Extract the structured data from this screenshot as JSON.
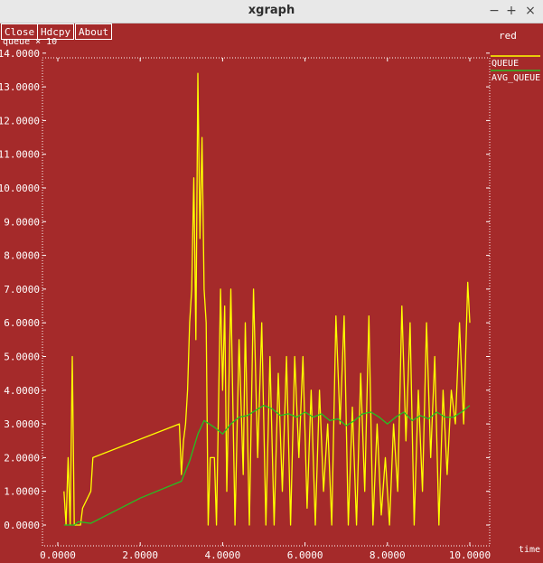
{
  "window": {
    "title": "xgraph",
    "controls": {
      "minimize": "−",
      "maximize": "+",
      "close": "×"
    }
  },
  "toolbar": {
    "close_label": "Close",
    "hdcpy_label": "Hdcpy",
    "about_label": "About"
  },
  "graph_title": "red",
  "colors": {
    "background": "#a52a2a",
    "queue": "#ffff00",
    "avg_queue": "#22c322",
    "text": "#ffffff"
  },
  "chart_data": {
    "type": "line",
    "ylabel": "queue × 10⁻",
    "xlabel": "time",
    "xlim": [
      0,
      10.5
    ],
    "ylim": [
      -0.6,
      14.0
    ],
    "y_ticks": [
      "14.0000",
      "13.0000",
      "12.0000",
      "11.0000",
      "10.0000",
      "9.0000",
      "8.0000",
      "7.0000",
      "6.0000",
      "5.0000",
      "4.0000",
      "3.0000",
      "2.0000",
      "1.0000",
      "0.0000"
    ],
    "x_ticks": [
      "0.0000",
      "2.0000",
      "4.0000",
      "6.0000",
      "8.0000",
      "10.0000"
    ],
    "grid": false,
    "legend_position": "right",
    "series": [
      {
        "name": "QUEUE",
        "color": "#ffff00",
        "points": [
          [
            0.15,
            1.0
          ],
          [
            0.2,
            0
          ],
          [
            0.25,
            2.0
          ],
          [
            0.3,
            0
          ],
          [
            0.35,
            5.0
          ],
          [
            0.4,
            0
          ],
          [
            0.45,
            0
          ],
          [
            0.55,
            0
          ],
          [
            0.6,
            0.5
          ],
          [
            0.8,
            1.0
          ],
          [
            0.85,
            2.0
          ],
          [
            2.95,
            3.0
          ],
          [
            3.0,
            1.5
          ],
          [
            3.05,
            2.5
          ],
          [
            3.1,
            3.0
          ],
          [
            3.15,
            4.0
          ],
          [
            3.2,
            6.0
          ],
          [
            3.25,
            7.0
          ],
          [
            3.3,
            10.3
          ],
          [
            3.35,
            5.5
          ],
          [
            3.4,
            13.4
          ],
          [
            3.45,
            8.5
          ],
          [
            3.5,
            11.5
          ],
          [
            3.55,
            7.0
          ],
          [
            3.6,
            6.0
          ],
          [
            3.65,
            0
          ],
          [
            3.7,
            2.0
          ],
          [
            3.8,
            2.0
          ],
          [
            3.85,
            0
          ],
          [
            3.95,
            7.0
          ],
          [
            4.0,
            4.0
          ],
          [
            4.05,
            6.5
          ],
          [
            4.1,
            1.0
          ],
          [
            4.2,
            7.0
          ],
          [
            4.3,
            0
          ],
          [
            4.4,
            5.5
          ],
          [
            4.5,
            1.5
          ],
          [
            4.55,
            6.0
          ],
          [
            4.65,
            0
          ],
          [
            4.75,
            7.0
          ],
          [
            4.85,
            2.0
          ],
          [
            4.95,
            6.0
          ],
          [
            5.05,
            0
          ],
          [
            5.15,
            5.0
          ],
          [
            5.25,
            0
          ],
          [
            5.35,
            4.5
          ],
          [
            5.45,
            1.0
          ],
          [
            5.55,
            5.0
          ],
          [
            5.65,
            0
          ],
          [
            5.75,
            5.0
          ],
          [
            5.85,
            2.0
          ],
          [
            5.95,
            5.0
          ],
          [
            6.05,
            0.5
          ],
          [
            6.15,
            4.0
          ],
          [
            6.25,
            0
          ],
          [
            6.35,
            4.0
          ],
          [
            6.45,
            1.0
          ],
          [
            6.55,
            3.0
          ],
          [
            6.65,
            0
          ],
          [
            6.75,
            6.2
          ],
          [
            6.85,
            3.0
          ],
          [
            6.95,
            6.2
          ],
          [
            7.05,
            0
          ],
          [
            7.15,
            3.5
          ],
          [
            7.25,
            0
          ],
          [
            7.35,
            4.5
          ],
          [
            7.45,
            1.0
          ],
          [
            7.55,
            6.2
          ],
          [
            7.65,
            0
          ],
          [
            7.75,
            3.0
          ],
          [
            7.85,
            0.3
          ],
          [
            7.95,
            2.0
          ],
          [
            8.05,
            0
          ],
          [
            8.15,
            3.0
          ],
          [
            8.25,
            1.0
          ],
          [
            8.35,
            6.5
          ],
          [
            8.45,
            2.5
          ],
          [
            8.55,
            6.0
          ],
          [
            8.65,
            0
          ],
          [
            8.75,
            4.0
          ],
          [
            8.85,
            1.0
          ],
          [
            8.95,
            6.0
          ],
          [
            9.05,
            2.0
          ],
          [
            9.15,
            5.0
          ],
          [
            9.25,
            0
          ],
          [
            9.35,
            4.0
          ],
          [
            9.45,
            1.5
          ],
          [
            9.55,
            4.0
          ],
          [
            9.65,
            3.0
          ],
          [
            9.75,
            6.0
          ],
          [
            9.85,
            3.0
          ],
          [
            9.95,
            7.2
          ],
          [
            10.0,
            6.0
          ]
        ]
      },
      {
        "name": "AVG_QUEUE",
        "color": "#22c322",
        "points": [
          [
            0.15,
            0
          ],
          [
            0.4,
            0
          ],
          [
            0.5,
            0.1
          ],
          [
            0.8,
            0.05
          ],
          [
            1.2,
            0.3
          ],
          [
            2.0,
            0.8
          ],
          [
            2.5,
            1.05
          ],
          [
            3.0,
            1.3
          ],
          [
            3.2,
            1.9
          ],
          [
            3.4,
            2.7
          ],
          [
            3.55,
            3.1
          ],
          [
            3.8,
            2.9
          ],
          [
            4.0,
            2.7
          ],
          [
            4.2,
            3.0
          ],
          [
            4.4,
            3.2
          ],
          [
            4.6,
            3.25
          ],
          [
            4.8,
            3.4
          ],
          [
            5.0,
            3.55
          ],
          [
            5.2,
            3.45
          ],
          [
            5.4,
            3.25
          ],
          [
            5.6,
            3.3
          ],
          [
            5.8,
            3.2
          ],
          [
            6.0,
            3.35
          ],
          [
            6.2,
            3.2
          ],
          [
            6.4,
            3.3
          ],
          [
            6.6,
            3.1
          ],
          [
            6.8,
            3.15
          ],
          [
            7.0,
            2.95
          ],
          [
            7.2,
            3.1
          ],
          [
            7.4,
            3.3
          ],
          [
            7.6,
            3.35
          ],
          [
            7.8,
            3.2
          ],
          [
            8.0,
            3.0
          ],
          [
            8.2,
            3.2
          ],
          [
            8.4,
            3.35
          ],
          [
            8.6,
            3.1
          ],
          [
            8.8,
            3.25
          ],
          [
            9.0,
            3.15
          ],
          [
            9.2,
            3.35
          ],
          [
            9.4,
            3.2
          ],
          [
            9.6,
            3.2
          ],
          [
            9.8,
            3.35
          ],
          [
            10.0,
            3.55
          ]
        ]
      }
    ]
  }
}
